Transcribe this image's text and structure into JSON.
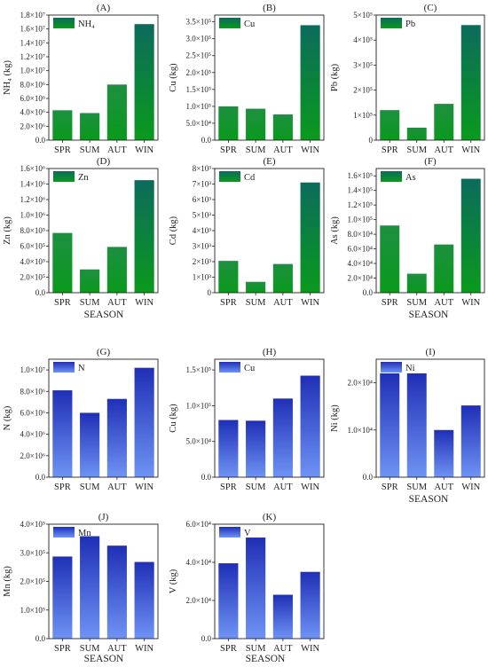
{
  "figure": {
    "x_title": "SEASON",
    "categories": [
      "SPR",
      "SUM",
      "AUT",
      "WIN"
    ]
  },
  "colors": {
    "green_bottom": "#0a9a1c",
    "green_top": "#1d8f40",
    "green_peak_top": "#0b6b5c",
    "blue_top": "#1f2fb6",
    "blue_bottom": "#6e93f4"
  },
  "chart_data": [
    {
      "type": "bar",
      "panel": "(A)",
      "legend": "NH₄",
      "ylabel": "NH₄ (kg)",
      "color_scheme": "green",
      "categories": [
        "SPR",
        "SUM",
        "AUT",
        "WIN"
      ],
      "values": [
        4300000,
        3900000,
        8000000,
        16700000
      ],
      "ylim": [
        0,
        18000000
      ],
      "yticks": [
        0,
        2000000,
        4000000,
        6000000,
        8000000,
        10000000,
        12000000,
        14000000,
        16000000,
        18000000
      ],
      "ytick_labels": [
        "0.0",
        "2.0×10⁶",
        "4.0×10⁶",
        "6.0×10⁶",
        "8.0×10⁶",
        "1.0×10⁷",
        "1.2×10⁷",
        "1.4×10⁷",
        "1.6×10⁷",
        "1.8×10⁷"
      ]
    },
    {
      "type": "bar",
      "panel": "(B)",
      "legend": "Cu",
      "ylabel": "Cu (kg)",
      "color_scheme": "green",
      "categories": [
        "SPR",
        "SUM",
        "AUT",
        "WIN"
      ],
      "values": [
        100000,
        93000,
        76000,
        340000
      ],
      "ylim": [
        0,
        370000
      ],
      "yticks": [
        0,
        50000,
        100000,
        150000,
        200000,
        250000,
        300000,
        350000
      ],
      "ytick_labels": [
        "0.0",
        "5.0×10⁴",
        "1.0×10⁵",
        "1.5×10⁵",
        "2.0×10⁵",
        "2.5×10⁵",
        "3.0×10⁵",
        "3.5×10⁵"
      ]
    },
    {
      "type": "bar",
      "panel": "(C)",
      "legend": "Pb",
      "ylabel": "Pb (kg)",
      "color_scheme": "green",
      "categories": [
        "SPR",
        "SUM",
        "AUT",
        "WIN"
      ],
      "values": [
        120000,
        50000,
        145000,
        460000
      ],
      "ylim": [
        0,
        500000
      ],
      "yticks": [
        0,
        100000,
        200000,
        300000,
        400000,
        500000
      ],
      "ytick_labels": [
        "0",
        "1×10⁵",
        "2×10⁵",
        "3×10⁵",
        "4×10⁵",
        "5×10⁵"
      ]
    },
    {
      "type": "bar",
      "panel": "(D)",
      "legend": "Zn",
      "ylabel": "Zn (kg)",
      "color_scheme": "green",
      "categories": [
        "SPR",
        "SUM",
        "AUT",
        "WIN"
      ],
      "values": [
        770000,
        300000,
        590000,
        1450000
      ],
      "ylim": [
        0,
        1600000
      ],
      "yticks": [
        0,
        200000,
        400000,
        600000,
        800000,
        1000000,
        1200000,
        1400000,
        1600000
      ],
      "ytick_labels": [
        "0.0",
        "2.0×10⁵",
        "4.0×10⁵",
        "6.0×10⁵",
        "8.0×10⁵",
        "1.0×10⁶",
        "1.2×10⁶",
        "1.4×10⁶",
        "1.6×10⁶"
      ]
    },
    {
      "type": "bar",
      "panel": "(E)",
      "legend": "Cd",
      "ylabel": "Cd (kg)",
      "color_scheme": "green",
      "categories": [
        "SPR",
        "SUM",
        "AUT",
        "WIN"
      ],
      "values": [
        2050,
        700,
        1850,
        7100
      ],
      "ylim": [
        0,
        8000
      ],
      "yticks": [
        0,
        1000,
        2000,
        3000,
        4000,
        5000,
        6000,
        7000,
        8000
      ],
      "ytick_labels": [
        "0",
        "1×10³",
        "2×10³",
        "3×10³",
        "4×10³",
        "5×10³",
        "6×10³",
        "7×10³",
        "8×10³"
      ]
    },
    {
      "type": "bar",
      "panel": "(F)",
      "legend": "As",
      "ylabel": "As (kg)",
      "color_scheme": "green",
      "categories": [
        "SPR",
        "SUM",
        "AUT",
        "WIN"
      ],
      "values": [
        92000,
        26000,
        66000,
        156000
      ],
      "ylim": [
        0,
        170000
      ],
      "yticks": [
        0,
        20000,
        40000,
        60000,
        80000,
        100000,
        120000,
        140000,
        160000
      ],
      "ytick_labels": [
        "0.0",
        "2.0×10⁴",
        "4.0×10⁴",
        "6.0×10⁴",
        "8.0×10⁴",
        "1.0×10⁵",
        "1.2×10⁵",
        "1.4×10⁵",
        "1.6×10⁵"
      ]
    },
    {
      "type": "bar",
      "panel": "(G)",
      "legend": "N",
      "ylabel": "N (kg)",
      "color_scheme": "blue",
      "categories": [
        "SPR",
        "SUM",
        "AUT",
        "WIN"
      ],
      "values": [
        8100000,
        6000000,
        7300000,
        10200000
      ],
      "ylim": [
        0,
        11000000
      ],
      "yticks": [
        0,
        2000000,
        4000000,
        6000000,
        8000000,
        10000000
      ],
      "ytick_labels": [
        "0.0",
        "2.0×10⁶",
        "4.0×10⁶",
        "6.0×10⁶",
        "8.0×10⁶",
        "1.0×10⁷"
      ]
    },
    {
      "type": "bar",
      "panel": "(H)",
      "legend": "Cu",
      "ylabel": "Cu (kg)",
      "color_scheme": "blue",
      "categories": [
        "SPR",
        "SUM",
        "AUT",
        "WIN"
      ],
      "values": [
        80000,
        79000,
        110000,
        142000
      ],
      "ylim": [
        0,
        165000
      ],
      "yticks": [
        0,
        50000,
        100000,
        150000
      ],
      "ytick_labels": [
        "0.0",
        "5.0×10⁴",
        "1.0×10⁵",
        "1.5×10⁵"
      ]
    },
    {
      "type": "bar",
      "panel": "(I)",
      "legend": "Ni",
      "ylabel": "Ni (kg)",
      "color_scheme": "blue",
      "categories": [
        "SPR",
        "SUM",
        "AUT",
        "WIN"
      ],
      "values": [
        22000,
        22000,
        10000,
        15200
      ],
      "ylim": [
        0,
        25000
      ],
      "yticks": [
        0,
        10000,
        20000
      ],
      "ytick_labels": [
        "0.0",
        "1.0×10⁴",
        "2.0×10⁴"
      ]
    },
    {
      "type": "bar",
      "panel": "(J)",
      "legend": "Mn",
      "ylabel": "Mn (kg)",
      "color_scheme": "blue",
      "categories": [
        "SPR",
        "SUM",
        "AUT",
        "WIN"
      ],
      "values": [
        287000,
        358000,
        325000,
        268000
      ],
      "ylim": [
        0,
        400000
      ],
      "yticks": [
        0,
        100000,
        200000,
        300000,
        400000
      ],
      "ytick_labels": [
        "0.0",
        "1.0×10⁵",
        "2.0×10⁵",
        "3.0×10⁵",
        "4.0×10⁵"
      ]
    },
    {
      "type": "bar",
      "panel": "(K)",
      "legend": "V",
      "ylabel": "V (kg)",
      "color_scheme": "blue",
      "categories": [
        "SPR",
        "SUM",
        "AUT",
        "WIN"
      ],
      "values": [
        39500,
        53000,
        23000,
        35000
      ],
      "ylim": [
        0,
        60000
      ],
      "yticks": [
        0,
        20000,
        40000,
        60000
      ],
      "ytick_labels": [
        "0.0",
        "2.0×10⁴",
        "4.0×10⁴",
        "6.0×10⁴"
      ]
    }
  ]
}
